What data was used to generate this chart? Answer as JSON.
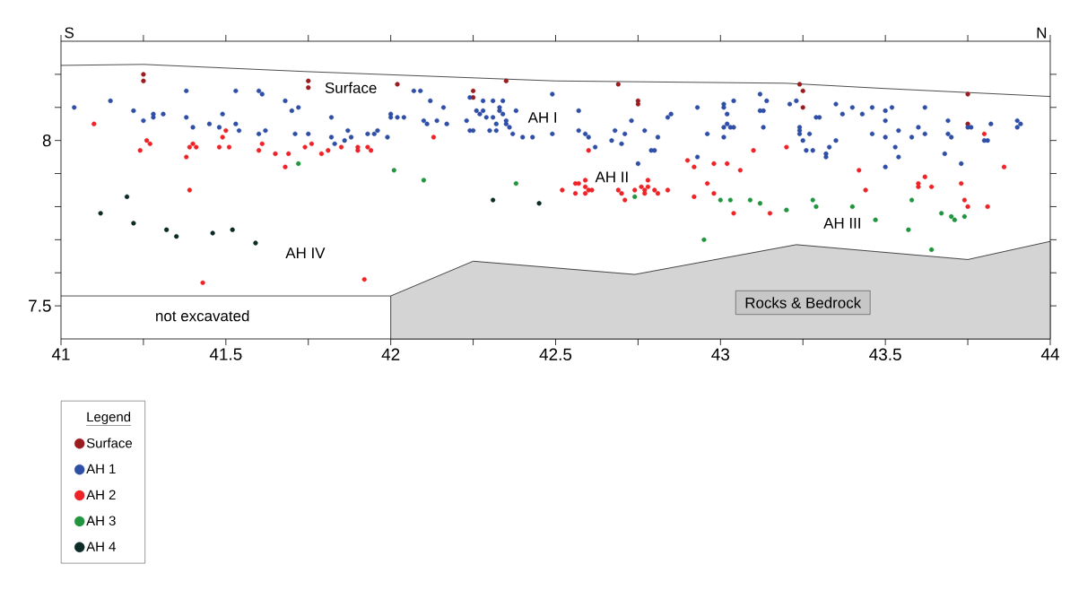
{
  "chart_data": {
    "type": "scatter",
    "legend_title": "Legend",
    "legend": "bottom left",
    "xlim": [
      41,
      44
    ],
    "ylim": [
      7.4,
      8.3
    ],
    "xticks": [
      41,
      {
        "value": 41.25,
        "label": null
      },
      41.5,
      {
        "value": 41.75,
        "label": null
      },
      42,
      {
        "value": 42.25,
        "label": null
      },
      42.5,
      {
        "value": 42.75,
        "label": null
      },
      43,
      {
        "value": 43.25,
        "label": null
      },
      43.5,
      {
        "value": 43.75,
        "label": null
      },
      44
    ],
    "yticks": [
      7.5,
      {
        "value": 7.6,
        "label": null
      },
      {
        "value": 7.7,
        "label": null
      },
      {
        "value": 7.8,
        "label": null
      },
      {
        "value": 7.9,
        "label": null
      },
      8,
      {
        "value": 8.1,
        "label": null
      },
      {
        "value": 8.2,
        "label": null
      }
    ],
    "annotations": [
      "S",
      "N",
      "Surface",
      "AH I",
      "AH II",
      "AH III",
      "AH IV",
      "not excavated",
      "Rocks & Bedrock"
    ],
    "series": [
      {
        "name": "Surface",
        "marker": "circle",
        "color": "#9b1c1f",
        "x": [
          41.25,
          41.25,
          41.75,
          41.75,
          42.02,
          42.25,
          42.25,
          42.35,
          42.69,
          42.75,
          42.75,
          43.24,
          43.25,
          43.25,
          43.75,
          43.75
        ],
        "values": [
          8.2,
          8.18,
          8.18,
          8.16,
          8.17,
          8.15,
          8.13,
          8.18,
          8.17,
          8.12,
          8.11,
          8.17,
          8.15,
          8.1,
          8.14,
          8.05
        ]
      },
      {
        "name": "AH 1",
        "marker": "circle",
        "color": "#2f4fa6",
        "x": [
          41.04,
          41.15,
          41.22,
          41.25,
          41.28,
          41.28,
          41.31,
          41.38,
          41.38,
          41.4,
          41.45,
          41.48,
          41.49,
          41.53,
          41.53,
          41.54,
          41.6,
          41.61,
          41.6,
          41.62,
          41.68,
          41.7,
          41.72,
          41.71,
          41.75,
          41.82,
          41.82,
          41.83,
          41.86,
          41.87,
          41.88,
          41.93,
          41.95,
          41.96,
          41.99,
          42.0,
          42.0,
          42.02,
          42.04,
          42.07,
          42.09,
          42.12,
          42.16,
          42.1,
          42.11,
          42.14,
          42.17,
          42.23,
          42.24,
          42.24,
          42.25,
          42.26,
          42.27,
          42.28,
          42.28,
          42.29,
          42.31,
          42.31,
          42.3,
          42.32,
          42.32,
          42.33,
          42.33,
          42.34,
          42.34,
          42.35,
          42.35,
          42.36,
          42.37,
          42.38,
          42.4,
          42.43,
          42.49,
          42.49,
          42.57,
          42.57,
          42.59,
          42.6,
          42.62,
          42.68,
          42.67,
          42.71,
          42.7,
          42.73,
          42.77,
          42.81,
          42.79,
          42.8,
          42.75,
          42.85,
          42.84,
          42.93,
          42.93,
          42.96,
          43.01,
          43.01,
          43.04,
          43.02,
          43.02,
          43.01,
          43.03,
          43.04,
          43.01,
          43.12,
          43.14,
          43.12,
          43.13,
          43.13,
          43.21,
          43.23,
          43.24,
          43.24,
          43.24,
          43.27,
          43.25,
          43.26,
          43.28,
          43.29,
          43.35,
          43.4,
          43.37,
          43.43,
          43.46,
          43.5,
          43.52,
          43.62,
          43.3,
          43.5,
          43.35,
          43.33,
          43.32,
          43.32,
          43.46,
          43.5,
          43.54,
          43.58,
          43.6,
          43.62,
          43.53,
          43.54,
          43.5,
          43.69,
          43.69,
          43.7,
          43.75,
          43.76,
          43.82,
          43.8,
          43.81,
          43.68,
          43.73,
          43.9,
          43.91,
          43.9
        ],
        "values": [
          8.1,
          8.12,
          8.09,
          8.06,
          8.08,
          8.07,
          8.08,
          8.15,
          8.07,
          8.04,
          8.05,
          8.04,
          8.08,
          8.15,
          8.05,
          8.03,
          8.15,
          8.14,
          8.02,
          8.03,
          8.12,
          8.09,
          8.1,
          8.02,
          8.02,
          8.07,
          8.01,
          7.99,
          8.0,
          8.03,
          8.01,
          8.02,
          8.02,
          8.03,
          8.01,
          8.08,
          8.07,
          8.07,
          8.07,
          8.15,
          8.15,
          8.12,
          8.1,
          8.06,
          8.05,
          8.06,
          8.05,
          8.06,
          8.13,
          8.03,
          8.03,
          8.09,
          8.08,
          8.12,
          8.09,
          8.07,
          8.12,
          8.07,
          8.03,
          8.05,
          8.03,
          8.1,
          8.09,
          8.12,
          8.08,
          8.06,
          8.05,
          8.04,
          8.02,
          8.09,
          8.01,
          8.01,
          8.14,
          8.02,
          8.09,
          8.03,
          8.02,
          8.01,
          7.98,
          8.03,
          8.0,
          8.02,
          7.99,
          8.06,
          8.03,
          8.01,
          7.97,
          7.97,
          7.93,
          8.08,
          8.07,
          8.1,
          7.95,
          8.02,
          8.11,
          8.1,
          8.12,
          8.08,
          8.05,
          8.04,
          8.04,
          8.04,
          8.01,
          8.14,
          8.12,
          8.09,
          8.09,
          8.04,
          8.11,
          8.12,
          8.04,
          8.03,
          8.02,
          8.02,
          8.0,
          7.97,
          7.97,
          8.07,
          8.11,
          8.1,
          8.08,
          8.08,
          8.1,
          8.09,
          8.1,
          8.1,
          8.07,
          8.06,
          8.0,
          7.98,
          7.96,
          7.95,
          8.02,
          8.01,
          8.03,
          8.01,
          8.04,
          8.02,
          7.98,
          7.95,
          7.92,
          8.06,
          8.02,
          8.01,
          8.04,
          8.04,
          8.05,
          8.0,
          8.0,
          7.96,
          7.93,
          8.06,
          8.05,
          8.04
        ]
      },
      {
        "name": "AH 2",
        "marker": "circle",
        "color": "#ee2327",
        "x": [
          41.1,
          41.26,
          41.27,
          41.24,
          41.38,
          41.39,
          41.4,
          41.41,
          41.48,
          41.51,
          41.49,
          41.5,
          41.6,
          41.61,
          41.65,
          41.69,
          41.68,
          41.74,
          41.76,
          41.39,
          41.43,
          41.79,
          41.81,
          41.85,
          41.9,
          41.9,
          41.93,
          41.94,
          42.13,
          42.52,
          41.92,
          42.56,
          42.57,
          42.56,
          42.59,
          42.59,
          42.6,
          42.59,
          42.61,
          42.6,
          42.69,
          42.7,
          42.71,
          42.74,
          42.76,
          42.77,
          42.77,
          42.78,
          42.78,
          42.8,
          42.81,
          42.84,
          42.9,
          42.92,
          42.98,
          43.02,
          43.06,
          42.96,
          42.98,
          42.92,
          43.04,
          43.15,
          43.1,
          43.2,
          43.8,
          43.86,
          43.42,
          43.44,
          43.6,
          43.6,
          43.62,
          43.64,
          43.73,
          43.74,
          43.75,
          43.81
        ],
        "values": [
          8.05,
          8.0,
          7.99,
          7.97,
          7.95,
          7.98,
          7.99,
          7.98,
          7.98,
          7.98,
          8.01,
          8.03,
          7.97,
          7.99,
          7.96,
          7.96,
          7.92,
          7.98,
          7.99,
          7.85,
          7.57,
          7.96,
          7.97,
          7.98,
          7.98,
          7.97,
          7.98,
          7.97,
          8.01,
          7.85,
          7.58,
          7.87,
          7.87,
          7.84,
          7.88,
          7.86,
          7.85,
          7.84,
          7.85,
          7.97,
          7.85,
          7.84,
          7.82,
          7.85,
          7.86,
          7.85,
          7.84,
          7.88,
          7.86,
          7.85,
          7.84,
          7.85,
          7.94,
          7.92,
          7.93,
          7.93,
          7.91,
          7.87,
          7.84,
          7.83,
          7.78,
          7.78,
          7.97,
          7.98,
          8.02,
          7.92,
          7.91,
          7.85,
          7.87,
          7.86,
          7.89,
          7.86,
          7.87,
          7.82,
          7.8,
          7.8
        ]
      },
      {
        "name": "AH 3",
        "marker": "circle",
        "color": "#21943f",
        "x": [
          41.72,
          42.01,
          42.1,
          42.38,
          42.74,
          43.0,
          43.03,
          43.09,
          43.12,
          43.2,
          43.28,
          43.29,
          42.95,
          43.4,
          43.47,
          43.58,
          43.57,
          43.67,
          43.7,
          43.71,
          43.74,
          43.64
        ],
        "values": [
          7.93,
          7.91,
          7.88,
          7.87,
          7.83,
          7.82,
          7.82,
          7.82,
          7.81,
          7.79,
          7.82,
          7.8,
          7.7,
          7.8,
          7.76,
          7.82,
          7.73,
          7.78,
          7.77,
          7.76,
          7.77,
          7.67
        ]
      },
      {
        "name": "AH 4",
        "marker": "circle",
        "color": "#0c2b27",
        "x": [
          41.2,
          41.12,
          41.22,
          41.32,
          41.35,
          41.46,
          41.52,
          41.59,
          42.31,
          42.45
        ],
        "values": [
          7.83,
          7.78,
          7.75,
          7.73,
          7.71,
          7.72,
          7.73,
          7.69,
          7.82,
          7.81
        ]
      },
      {
        "type": "line",
        "color": "#000000",
        "x": [
          41,
          41.25,
          41.75,
          42.5,
          43.2,
          43.5,
          44
        ],
        "values": [
          8.227,
          8.23,
          8.208,
          8.18,
          8.173,
          8.157,
          8.133
        ]
      },
      {
        "type": "line",
        "color": "#000000",
        "x": [
          41,
          42
        ],
        "values": [
          7.53,
          7.53
        ]
      },
      {
        "type": "area",
        "color": "#d4d4d4",
        "x": [
          42,
          42.25,
          42.74,
          43.23,
          43.75,
          44
        ],
        "values": [
          7.53,
          7.635,
          7.595,
          7.685,
          7.64,
          7.695
        ]
      }
    ]
  }
}
